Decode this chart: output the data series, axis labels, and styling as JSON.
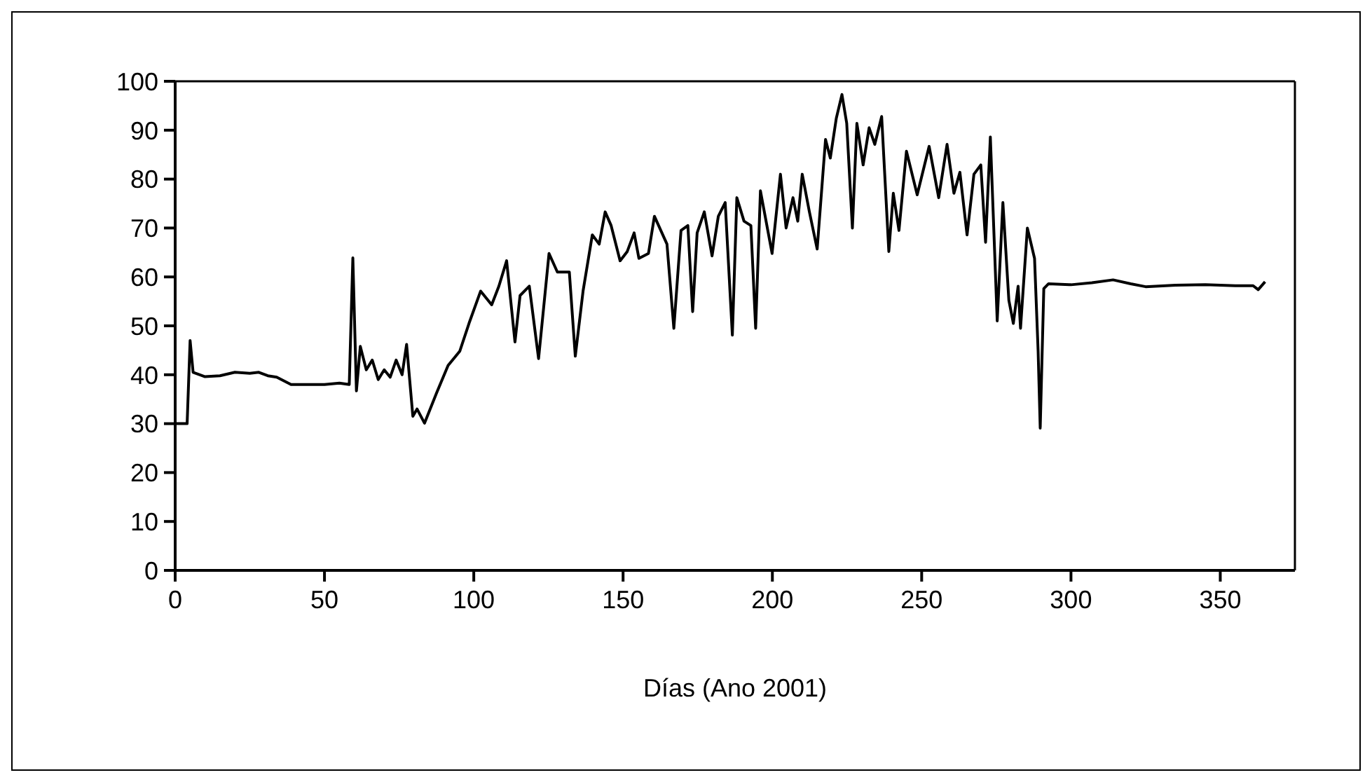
{
  "chart_data": {
    "type": "line",
    "xlabel": "Días (Ano 2001)",
    "xlim": [
      0,
      375
    ],
    "xticks": [
      0,
      50,
      100,
      150,
      200,
      250,
      300,
      350
    ],
    "ylim": [
      0,
      100
    ],
    "yticks": [
      0,
      10,
      20,
      30,
      40,
      50,
      60,
      70,
      80,
      90,
      100
    ],
    "grid": false,
    "legend": false,
    "marker": "none",
    "line_style": "solid",
    "series": [
      {
        "color": "#000000",
        "x": [
          0,
          4,
          5,
          6,
          10,
          15,
          20,
          25,
          28,
          31,
          34,
          38.8,
          45,
          50,
          55,
          58.3,
          59.5,
          60.7,
          62,
          64,
          66,
          68,
          70,
          72,
          74,
          76,
          77.5,
          79.6,
          81,
          83.5,
          87.5,
          91.4,
          95.3,
          98.4,
          102.3,
          106,
          108.4,
          111,
          113.8,
          115.5,
          118.6,
          121.7,
          125.2,
          128,
          132,
          134,
          136.6,
          139.7,
          142,
          144,
          146,
          149,
          151.4,
          153.7,
          155.3,
          158.5,
          160.5,
          164.7,
          167,
          169.4,
          171.7,
          173.3,
          174.8,
          177.2,
          179.8,
          181.9,
          184.2,
          186.6,
          188.1,
          190.5,
          192.8,
          194.4,
          196,
          199.9,
          202.7,
          204.6,
          206.9,
          208.5,
          210,
          212.4,
          215,
          217.8,
          219.4,
          221.4,
          223.3,
          224.9,
          226.8,
          228.3,
          230.4,
          232.4,
          234.3,
          236.6,
          239,
          240.5,
          242.4,
          244.9,
          248.5,
          252.5,
          255.7,
          258.5,
          260.8,
          262.8,
          265.2,
          267.5,
          269.8,
          271.4,
          273,
          275.3,
          277.2,
          279.2,
          280.7,
          282.3,
          283.1,
          285.4,
          287.8,
          289,
          289.7,
          290.9,
          292.5,
          300,
          307,
          314.1,
          320,
          325,
          335,
          345,
          355,
          361,
          362.7,
          365
        ],
        "values": [
          30,
          30,
          47,
          40.5,
          39.6,
          39.8,
          40.5,
          40.3,
          40.5,
          39.8,
          39.5,
          38,
          38,
          38,
          38.3,
          38,
          63.9,
          36.7,
          45.8,
          41,
          43,
          39,
          41,
          39.5,
          43,
          40,
          46.2,
          31.5,
          33,
          30.1,
          36.2,
          41.9,
          44.8,
          50.5,
          57.1,
          54.3,
          58.1,
          63.3,
          46.7,
          56.2,
          58.1,
          43.3,
          64.8,
          61,
          61,
          43.8,
          57.1,
          68.6,
          66.7,
          73.3,
          70.5,
          63.3,
          65.2,
          69,
          63.8,
          64.8,
          72.4,
          66.7,
          49.5,
          69.5,
          70.5,
          52.9,
          69,
          73.3,
          64.3,
          72.4,
          75.2,
          48.1,
          76.2,
          71.4,
          70.5,
          49.5,
          77.6,
          64.8,
          81,
          70,
          76.2,
          71.4,
          81,
          73.3,
          65.7,
          88.1,
          84.3,
          92.4,
          97.3,
          91.4,
          70,
          91.4,
          82.9,
          90.5,
          87.1,
          92.8,
          65.2,
          77.1,
          69.5,
          85.7,
          76.8,
          86.7,
          76.2,
          87.1,
          77.1,
          81.4,
          68.6,
          81,
          82.9,
          67.1,
          88.6,
          51,
          75.2,
          55.2,
          50.5,
          58.1,
          49.5,
          70,
          63.8,
          44.8,
          29.1,
          57.6,
          58.6,
          58.4,
          58.8,
          59.4,
          58.6,
          58,
          58.3,
          58.4,
          58.2,
          58.2,
          57.4,
          59
        ]
      }
    ]
  }
}
